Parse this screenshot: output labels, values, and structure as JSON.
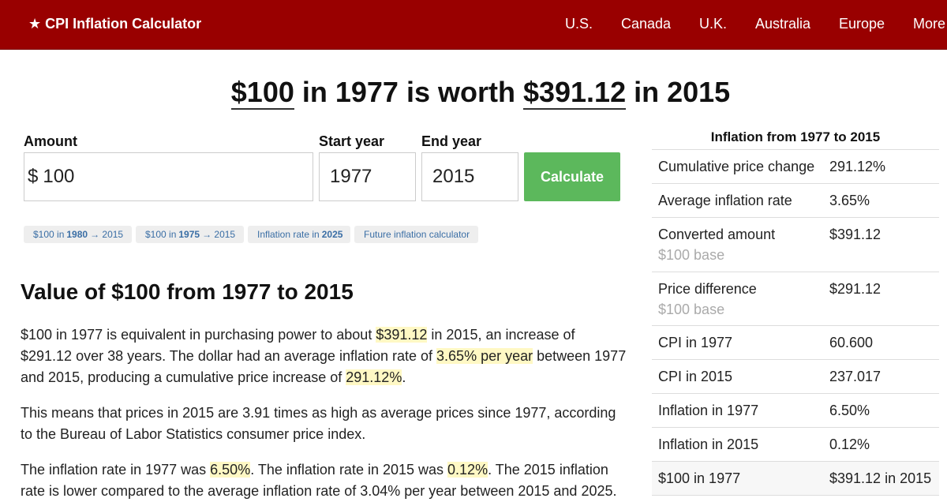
{
  "header": {
    "brand": "★ CPI Inflation Calculator",
    "nav": [
      "U.S.",
      "Canada",
      "U.K.",
      "Australia",
      "Europe",
      "More"
    ]
  },
  "headline": {
    "amount": "$100",
    "mid1": " in 1977 is worth ",
    "value": "$391.12",
    "mid2": " in 2015"
  },
  "form": {
    "amount_label": "Amount",
    "currency": "$",
    "amount_value": "100",
    "start_label": "Start year",
    "start_value": "1977",
    "end_label": "End year",
    "end_value": "2015",
    "calculate": "Calculate"
  },
  "chips": [
    {
      "pre": "$100 in",
      "bold": "1980",
      "post": "→ 2015"
    },
    {
      "pre": "$100 in",
      "bold": "1975",
      "post": "→ 2015"
    },
    {
      "pre": "Inflation rate in",
      "bold": "2025",
      "post": ""
    },
    {
      "pre": "Future inflation calculator",
      "bold": "",
      "post": ""
    }
  ],
  "section": {
    "title": "Value of $100 from 1977 to 2015",
    "p1": {
      "a": "$100 in 1977 is equivalent in purchasing power to about ",
      "b": "$391.12",
      "c": " in 2015, an increase of $291.12 over 38 years. The dollar had an average inflation rate of ",
      "d": "3.65% per year",
      "e": " between 1977 and 2015, producing a cumulative price increase of ",
      "f": "291.12%",
      "g": "."
    },
    "p2": "This means that prices in 2015 are 3.91 times as high as average prices since 1977, according to the Bureau of Labor Statistics consumer price index.",
    "p3": {
      "a": "The inflation rate in 1977 was ",
      "b": "6.50%",
      "c": ". The inflation rate in 2015 was ",
      "d": "0.12%",
      "e": ". The 2015 inflation rate is lower compared to the average inflation rate of 3.04% per year between 2015 and 2025."
    }
  },
  "sidebar": {
    "title": "Inflation from 1977 to 2015",
    "rows": [
      {
        "k": "Cumulative price change",
        "v": "291.12%",
        "sub": ""
      },
      {
        "k": "Average inflation rate",
        "v": "3.65%",
        "sub": ""
      },
      {
        "k": "Converted amount",
        "v": "$391.12",
        "sub": "$100 base"
      },
      {
        "k": "Price difference",
        "v": "$291.12",
        "sub": "$100 base"
      },
      {
        "k": "CPI in 1977",
        "v": "60.600",
        "sub": ""
      },
      {
        "k": "CPI in 2015",
        "v": "237.017",
        "sub": ""
      },
      {
        "k": "Inflation in 1977",
        "v": "6.50%",
        "sub": ""
      },
      {
        "k": "Inflation in 2015",
        "v": "0.12%",
        "sub": ""
      },
      {
        "k": "$100 in 1977",
        "v": "$391.12 in 2015",
        "sub": ""
      }
    ]
  }
}
